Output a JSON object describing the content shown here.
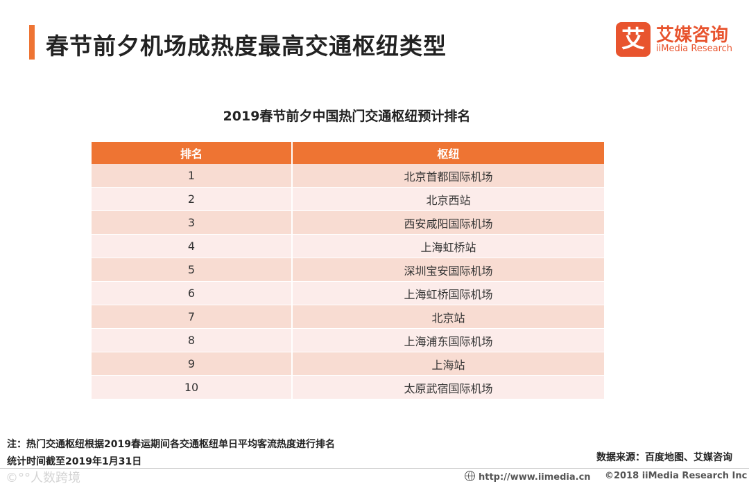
{
  "header": {
    "title": "春节前夕机场成热度最高交通枢纽类型",
    "accent_color": "#ee7433"
  },
  "logo": {
    "mark": "艾",
    "name_cn": "艾媒咨询",
    "name_en": "iiMedia Research",
    "color": "#e8542e"
  },
  "table": {
    "title": "2019春节前夕中国热门交通枢纽预计排名",
    "headers": [
      "排名",
      "枢纽"
    ],
    "rows": [
      {
        "rank": "1",
        "hub": "北京首都国际机场"
      },
      {
        "rank": "2",
        "hub": "北京西站"
      },
      {
        "rank": "3",
        "hub": "西安咸阳国际机场"
      },
      {
        "rank": "4",
        "hub": "上海虹桥站"
      },
      {
        "rank": "5",
        "hub": "深圳宝安国际机场"
      },
      {
        "rank": "6",
        "hub": "上海虹桥国际机场"
      },
      {
        "rank": "7",
        "hub": "北京站"
      },
      {
        "rank": "8",
        "hub": "上海浦东国际机场"
      },
      {
        "rank": "9",
        "hub": "上海站"
      },
      {
        "rank": "10",
        "hub": "太原武宿国际机场"
      }
    ]
  },
  "notes": {
    "line1": "注：热门交通枢纽根据2019春运期间各交通枢纽单日平均客流热度进行排名",
    "line2": "统计时间截至2019年1月31日",
    "source": "数据来源：百度地图、艾媒咨询"
  },
  "footer": {
    "watermark": "©°°人数跨境",
    "site": "http://www.iimedia.cn",
    "copyright": "©2018  iiMedia Research  Inc"
  }
}
